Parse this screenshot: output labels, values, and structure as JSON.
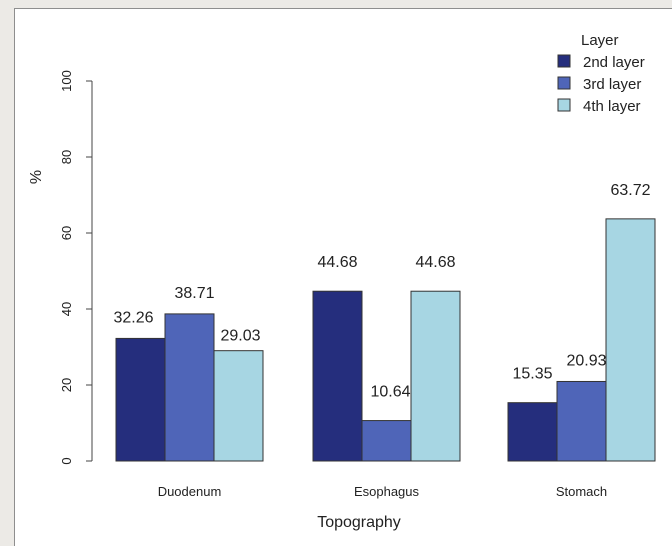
{
  "chart_data": {
    "type": "bar",
    "categories": [
      "Duodenum",
      "Esophagus",
      "Stomach"
    ],
    "series": [
      {
        "name": "2nd layer",
        "color": "#252e7d",
        "values": [
          32.26,
          44.68,
          15.35
        ]
      },
      {
        "name": "3rd layer",
        "color": "#4f65b8",
        "values": [
          38.71,
          10.64,
          20.93
        ]
      },
      {
        "name": "4th layer",
        "color": "#a7d6e3",
        "values": [
          29.03,
          44.68,
          63.72
        ]
      }
    ],
    "data_labels": [
      [
        "32.26",
        "44.68",
        "15.35"
      ],
      [
        "38.71",
        "10.64",
        "20.93"
      ],
      [
        "29.03",
        "44.68",
        "63.72"
      ]
    ],
    "xlabel": "Topography",
    "ylabel": "%",
    "ylim": [
      0,
      100
    ],
    "yticks": [
      "0",
      "20",
      "40",
      "60",
      "80",
      "100"
    ],
    "ytick_values": [
      0,
      20,
      40,
      60,
      80,
      100
    ],
    "legend_title": "Layer",
    "legend_position": "top-right",
    "grid": false
  }
}
